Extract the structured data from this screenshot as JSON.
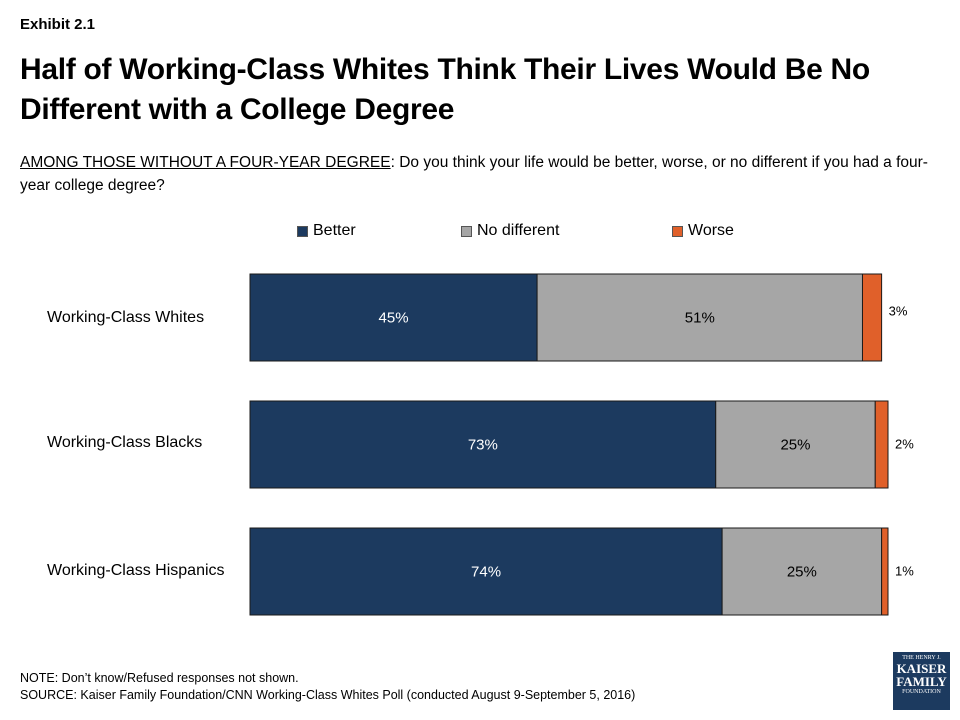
{
  "exhibit_label": "Exhibit 2.1",
  "title": "Half of Working-Class Whites Think Their Lives Would Be No Different with a College Degree",
  "question": {
    "prefix": "AMONG THOSE WITHOUT A FOUR-YEAR DEGREE",
    "text": ": Do you think your life would be better, worse, or no different if you had a four-year college degree?"
  },
  "colors": {
    "better": "#1c3a5f",
    "no_different": "#a6a6a6",
    "worse": "#e0602a"
  },
  "chart_data": {
    "type": "bar",
    "orientation": "horizontal",
    "stacked": true,
    "categories": [
      "Working-Class Whites",
      "Working-Class Blacks",
      "Working-Class Hispanics"
    ],
    "series": [
      {
        "name": "Better",
        "values": [
          45,
          73,
          74
        ],
        "labels": [
          "45%",
          "73%",
          "74%"
        ]
      },
      {
        "name": "No different",
        "values": [
          51,
          25,
          25
        ],
        "labels": [
          "51%",
          "25%",
          "25%"
        ]
      },
      {
        "name": "Worse",
        "values": [
          3,
          2,
          1
        ],
        "labels": [
          "3%",
          "2%",
          "1%"
        ]
      }
    ],
    "xlim": [
      0,
      100
    ],
    "legend_position": "top",
    "grid": false
  },
  "note": "NOTE: Don’t know/Refused responses not shown.",
  "source": "SOURCE: Kaiser Family Foundation/CNN Working-Class Whites Poll (conducted August 9-September 5, 2016)",
  "logo": {
    "line1": "THE HENRY J.",
    "line2": "KAISER",
    "line3": "FAMILY",
    "line4": "FOUNDATION"
  }
}
